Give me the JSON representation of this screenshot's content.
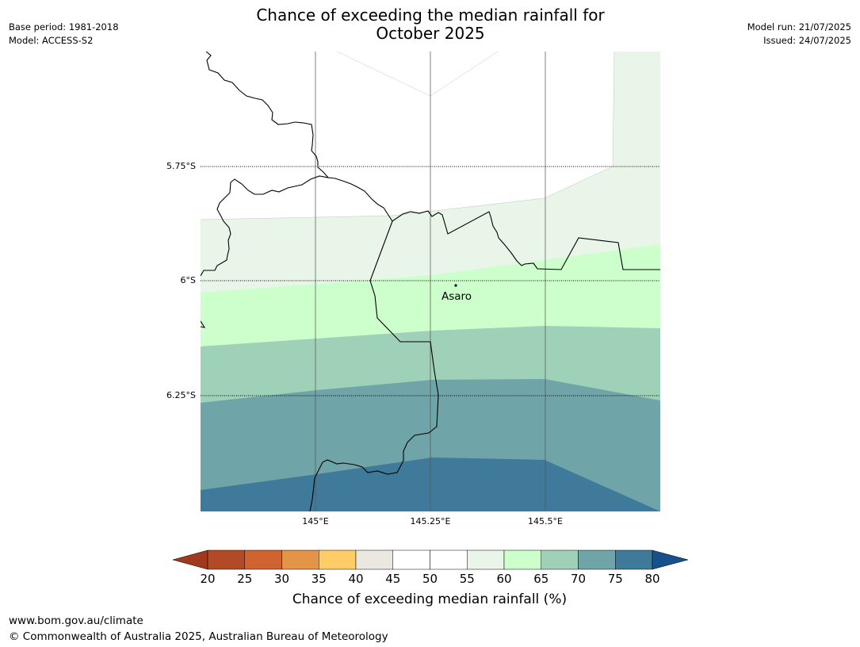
{
  "title_line1": "Chance of exceeding the median rainfall for",
  "title_line2": "October 2025",
  "meta": {
    "base_period": "Base period: 1981-2018",
    "model": "Model: ACCESS-S2",
    "model_run": "Model run: 21/07/2025",
    "issued": "Issued: 24/07/2025"
  },
  "map": {
    "lat_labels": [
      "5.75°S",
      "6°S",
      "6.25°S"
    ],
    "lon_labels": [
      "145°E",
      "145.25°E",
      "145.5°E"
    ],
    "place_label": "Asaro"
  },
  "colorbar": {
    "label": "Chance of exceeding median rainfall (%)",
    "ticks": [
      "20",
      "25",
      "30",
      "35",
      "40",
      "45",
      "50",
      "55",
      "60",
      "65",
      "70",
      "75",
      "80"
    ],
    "colors": [
      "#a0391d",
      "#b34a25",
      "#cf6431",
      "#e39446",
      "#ffcc66",
      "#eae8e1",
      "#ffffff",
      "#ffffff",
      "#eaf5ea",
      "#ccffcc",
      "#9ed1b8",
      "#6fa5a8",
      "#407a9a",
      "#17508a"
    ]
  },
  "footer": {
    "url": "www.bom.gov.au/climate",
    "copyright": "© Commonwealth of Australia 2025, Australian Bureau of Meteorology"
  }
}
